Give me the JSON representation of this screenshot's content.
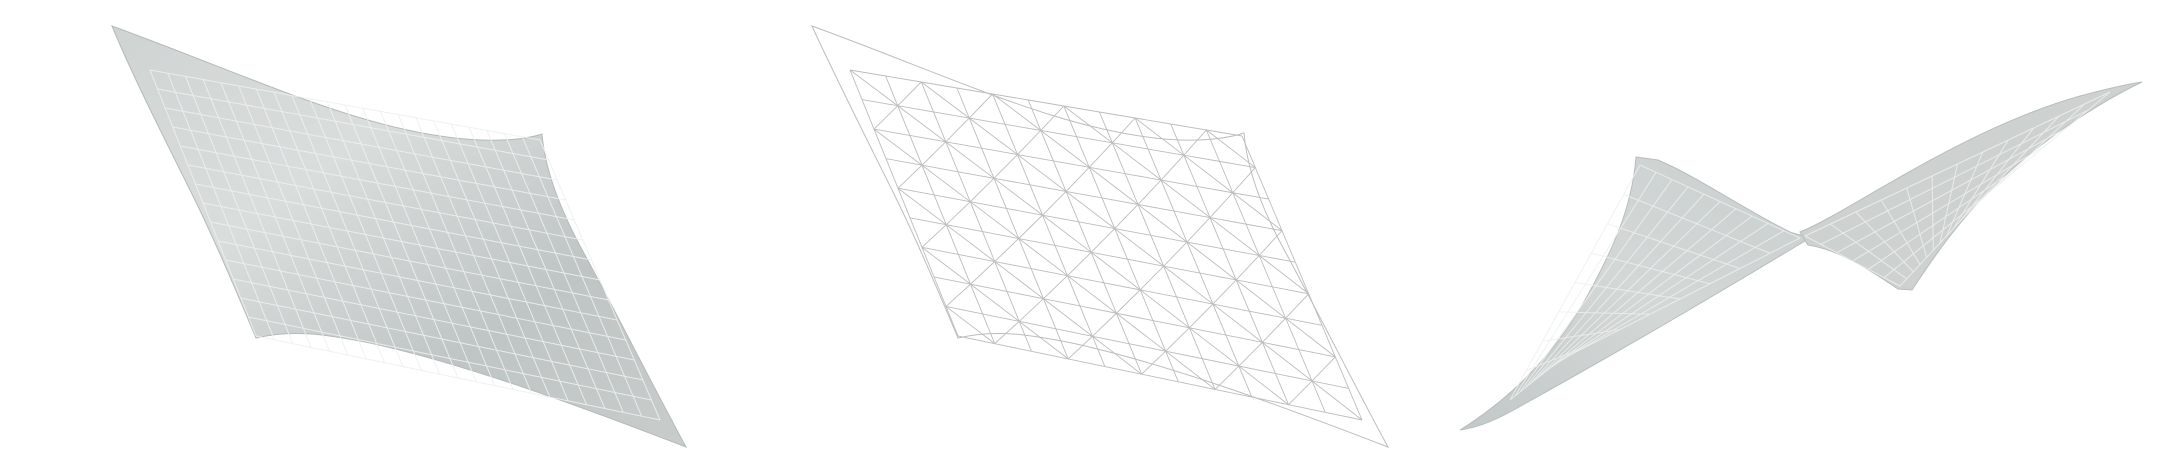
{
  "figure": {
    "panels": [
      {
        "id": "shaded-membrane",
        "render": "shaded",
        "fill": "#c4cac9",
        "grid_color": "#eef0ef"
      },
      {
        "id": "wireframe-mesh",
        "render": "wireframe",
        "line_color": "#bdbdbd"
      },
      {
        "id": "saddle-membrane",
        "render": "shaded",
        "fill": "#cad0cf",
        "grid_color": "#eef0ef"
      }
    ]
  }
}
